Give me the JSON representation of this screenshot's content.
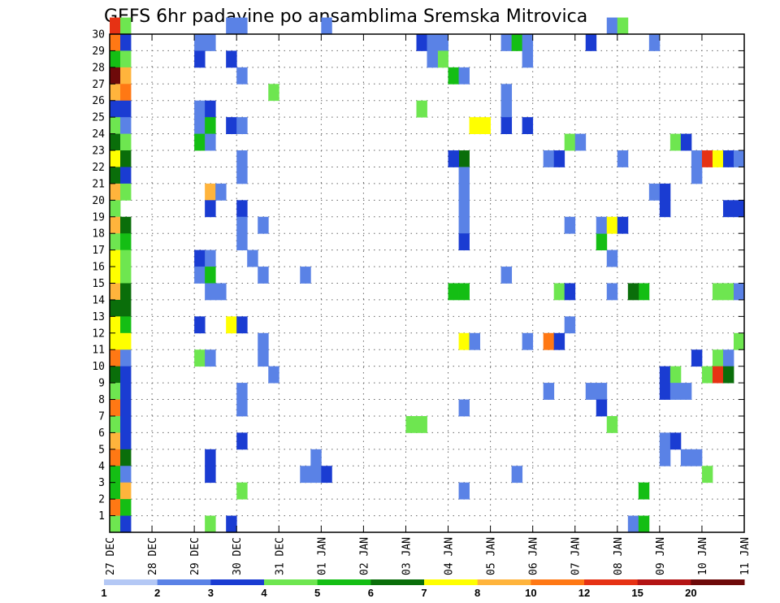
{
  "chart_data": {
    "type": "heatmap",
    "title": "GEFS 6hr padavine po ansamblima Sremska Mitrovica",
    "x_tick_labels": [
      "27 DEC",
      "28 DEC",
      "29 DEC",
      "30 DEC",
      "31 DEC",
      "01 JAN",
      "02 JAN",
      "03 JAN",
      "04 JAN",
      "05 JAN",
      "06 JAN",
      "07 JAN",
      "08 JAN",
      "09 JAN",
      "10 JAN",
      "11 JAN"
    ],
    "x_range_steps": [
      0,
      60
    ],
    "steps_per_day": 4,
    "y_tick_labels": [
      "1",
      "2",
      "3",
      "4",
      "5",
      "6",
      "7",
      "8",
      "9",
      "10",
      "11",
      "12",
      "13",
      "14",
      "15",
      "16",
      "17",
      "18",
      "19",
      "20",
      "21",
      "22",
      "23",
      "24",
      "25",
      "26",
      "27",
      "28",
      "29",
      "30"
    ],
    "y_range_members": [
      0,
      30
    ],
    "grid": "dotted",
    "legend": {
      "position": "bottom",
      "colors": [
        "#b4c8f5",
        "#5a82e6",
        "#1a3cd2",
        "#6ee650",
        "#14be14",
        "#0a6e0a",
        "#ffff00",
        "#ffb43c",
        "#ff7814",
        "#e63214",
        "#b41414",
        "#6e0a0a"
      ],
      "labels": [
        "1",
        "2",
        "3",
        "4",
        "5",
        "6",
        "7",
        "8",
        "10",
        "12",
        "15",
        "20"
      ]
    },
    "cells": [
      [
        0,
        30,
        9
      ],
      [
        0,
        29,
        8
      ],
      [
        0,
        28,
        4
      ],
      [
        0,
        27,
        11
      ],
      [
        0,
        26,
        7
      ],
      [
        0,
        25,
        2
      ],
      [
        0,
        24,
        3
      ],
      [
        0,
        23,
        5
      ],
      [
        0,
        22,
        6
      ],
      [
        0,
        21,
        5
      ],
      [
        0,
        20,
        7
      ],
      [
        0,
        19,
        3
      ],
      [
        0,
        18,
        7
      ],
      [
        0,
        17,
        3
      ],
      [
        0,
        16,
        6
      ],
      [
        0,
        15,
        6
      ],
      [
        0,
        14,
        7
      ],
      [
        0,
        13,
        5
      ],
      [
        0,
        12,
        6
      ],
      [
        0,
        11,
        6
      ],
      [
        0,
        10,
        8
      ],
      [
        0,
        9,
        5
      ],
      [
        0,
        8,
        3
      ],
      [
        0,
        7,
        8
      ],
      [
        0,
        6,
        3
      ],
      [
        0,
        5,
        7
      ],
      [
        0,
        4,
        8
      ],
      [
        0,
        3,
        4
      ],
      [
        0,
        2,
        4
      ],
      [
        0,
        1,
        8
      ],
      [
        0,
        0,
        3
      ],
      [
        1,
        30,
        3
      ],
      [
        1,
        29,
        2
      ],
      [
        1,
        28,
        3
      ],
      [
        1,
        27,
        7
      ],
      [
        1,
        26,
        8
      ],
      [
        1,
        25,
        2
      ],
      [
        1,
        24,
        1
      ],
      [
        1,
        23,
        3
      ],
      [
        1,
        22,
        5
      ],
      [
        1,
        21,
        2
      ],
      [
        1,
        20,
        3
      ],
      [
        1,
        18,
        5
      ],
      [
        1,
        17,
        4
      ],
      [
        1,
        16,
        3
      ],
      [
        1,
        15,
        3
      ],
      [
        1,
        14,
        5
      ],
      [
        1,
        13,
        5
      ],
      [
        1,
        12,
        4
      ],
      [
        1,
        11,
        6
      ],
      [
        1,
        10,
        1
      ],
      [
        1,
        9,
        2
      ],
      [
        1,
        8,
        2
      ],
      [
        1,
        7,
        2
      ],
      [
        1,
        6,
        2
      ],
      [
        1,
        5,
        2
      ],
      [
        1,
        4,
        5
      ],
      [
        1,
        3,
        1
      ],
      [
        1,
        2,
        7
      ],
      [
        1,
        1,
        4
      ],
      [
        1,
        0,
        2
      ],
      [
        8,
        29,
        1
      ],
      [
        9,
        29,
        1
      ],
      [
        8,
        28,
        2
      ],
      [
        8,
        25,
        1
      ],
      [
        9,
        25,
        2
      ],
      [
        8,
        24,
        1
      ],
      [
        9,
        24,
        4
      ],
      [
        8,
        23,
        4
      ],
      [
        9,
        23,
        1
      ],
      [
        9,
        20,
        7
      ],
      [
        10,
        20,
        1
      ],
      [
        9,
        19,
        2
      ],
      [
        8,
        16,
        2
      ],
      [
        9,
        16,
        1
      ],
      [
        8,
        15,
        1
      ],
      [
        9,
        15,
        4
      ],
      [
        9,
        14,
        1
      ],
      [
        10,
        14,
        1
      ],
      [
        8,
        12,
        2
      ],
      [
        8,
        10,
        3
      ],
      [
        9,
        10,
        1
      ],
      [
        9,
        4,
        2
      ],
      [
        9,
        3,
        2
      ],
      [
        9,
        0,
        3
      ],
      [
        11,
        30,
        1
      ],
      [
        12,
        30,
        1
      ],
      [
        11,
        28,
        2
      ],
      [
        12,
        27,
        1
      ],
      [
        11,
        24,
        2
      ],
      [
        12,
        24,
        1
      ],
      [
        12,
        22,
        1
      ],
      [
        12,
        21,
        1
      ],
      [
        12,
        19,
        2
      ],
      [
        12,
        18,
        1
      ],
      [
        12,
        17,
        1
      ],
      [
        11,
        12,
        6
      ],
      [
        12,
        12,
        2
      ],
      [
        12,
        8,
        1
      ],
      [
        12,
        7,
        1
      ],
      [
        12,
        5,
        2
      ],
      [
        12,
        2,
        3
      ],
      [
        11,
        0,
        2
      ],
      [
        15,
        26,
        3
      ],
      [
        13,
        16,
        1
      ],
      [
        14,
        15,
        1
      ],
      [
        14,
        18,
        1
      ],
      [
        14,
        11,
        1
      ],
      [
        14,
        10,
        1
      ],
      [
        15,
        9,
        1
      ],
      [
        18,
        15,
        1
      ],
      [
        18,
        3,
        1
      ],
      [
        19,
        3,
        1
      ],
      [
        19,
        4,
        1
      ],
      [
        20,
        3,
        2
      ],
      [
        20,
        30,
        1
      ],
      [
        29,
        29,
        2
      ],
      [
        30,
        29,
        1
      ],
      [
        31,
        29,
        1
      ],
      [
        31,
        28,
        3
      ],
      [
        30,
        28,
        1
      ],
      [
        32,
        27,
        4
      ],
      [
        33,
        27,
        1
      ],
      [
        29,
        25,
        3
      ],
      [
        33,
        22,
        5
      ],
      [
        32,
        22,
        2
      ],
      [
        33,
        21,
        1
      ],
      [
        33,
        20,
        1
      ],
      [
        33,
        19,
        1
      ],
      [
        33,
        18,
        1
      ],
      [
        33,
        17,
        2
      ],
      [
        33,
        14,
        4
      ],
      [
        32,
        14,
        4
      ],
      [
        33,
        11,
        6
      ],
      [
        34,
        11,
        1
      ],
      [
        33,
        7,
        1
      ],
      [
        33,
        2,
        1
      ],
      [
        28,
        6,
        3
      ],
      [
        29,
        6,
        3
      ],
      [
        34,
        24,
        6
      ],
      [
        35,
        24,
        6
      ],
      [
        37,
        29,
        1
      ],
      [
        38,
        29,
        4
      ],
      [
        39,
        29,
        1
      ],
      [
        39,
        28,
        1
      ],
      [
        37,
        26,
        1
      ],
      [
        37,
        25,
        1
      ],
      [
        37,
        24,
        2
      ],
      [
        39,
        24,
        2
      ],
      [
        37,
        15,
        1
      ],
      [
        39,
        11,
        1
      ],
      [
        38,
        3,
        1
      ],
      [
        41,
        22,
        1
      ],
      [
        42,
        22,
        2
      ],
      [
        41,
        11,
        8
      ],
      [
        42,
        11,
        2
      ],
      [
        43,
        18,
        1
      ],
      [
        41,
        8,
        1
      ],
      [
        43,
        23,
        3
      ],
      [
        44,
        23,
        1
      ],
      [
        42,
        14,
        3
      ],
      [
        43,
        14,
        2
      ],
      [
        43,
        12,
        1
      ],
      [
        45,
        29,
        2
      ],
      [
        46,
        8,
        1
      ],
      [
        45,
        8,
        1
      ],
      [
        46,
        7,
        2
      ],
      [
        46,
        17,
        4
      ],
      [
        46,
        18,
        1
      ],
      [
        47,
        18,
        6
      ],
      [
        48,
        18,
        2
      ],
      [
        47,
        16,
        1
      ],
      [
        47,
        14,
        1
      ],
      [
        47,
        6,
        3
      ],
      [
        47,
        30,
        1
      ],
      [
        48,
        30,
        3
      ],
      [
        48,
        22,
        1
      ],
      [
        50,
        14,
        4
      ],
      [
        49,
        14,
        5
      ],
      [
        49,
        0,
        1
      ],
      [
        50,
        0,
        4
      ],
      [
        50,
        2,
        4
      ],
      [
        51,
        20,
        1
      ],
      [
        52,
        20,
        2
      ],
      [
        52,
        19,
        2
      ],
      [
        52,
        9,
        2
      ],
      [
        53,
        9,
        3
      ],
      [
        52,
        8,
        2
      ],
      [
        53,
        8,
        1
      ],
      [
        54,
        8,
        1
      ],
      [
        52,
        5,
        1
      ],
      [
        53,
        5,
        2
      ],
      [
        52,
        4,
        1
      ],
      [
        54,
        4,
        1
      ],
      [
        55,
        4,
        1
      ],
      [
        51,
        29,
        1
      ],
      [
        53,
        23,
        3
      ],
      [
        54,
        23,
        2
      ],
      [
        55,
        22,
        1
      ],
      [
        55,
        21,
        1
      ],
      [
        56,
        22,
        9
      ],
      [
        57,
        22,
        6
      ],
      [
        58,
        22,
        2
      ],
      [
        59,
        22,
        1
      ],
      [
        57,
        14,
        3
      ],
      [
        58,
        14,
        3
      ],
      [
        59,
        14,
        1
      ],
      [
        55,
        10,
        2
      ],
      [
        57,
        10,
        3
      ],
      [
        58,
        10,
        1
      ],
      [
        56,
        9,
        3
      ],
      [
        57,
        9,
        9
      ],
      [
        58,
        9,
        5
      ],
      [
        59,
        11,
        3
      ],
      [
        58,
        19,
        2
      ],
      [
        59,
        19,
        2
      ],
      [
        56,
        3,
        3
      ]
    ]
  }
}
